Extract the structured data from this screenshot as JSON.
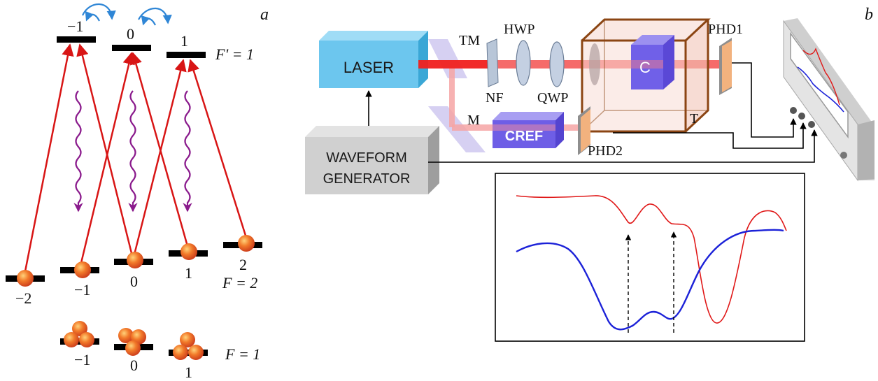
{
  "panel_a": {
    "panel_label": "a",
    "upper_level": {
      "name": "F' = 1",
      "sublevel_labels": [
        "−1",
        "0",
        "1"
      ]
    },
    "middle_level": {
      "name": "F = 2",
      "sublevel_labels": [
        "−2",
        "−1",
        "0",
        "1",
        "2"
      ]
    },
    "lower_level": {
      "name": "F = 1",
      "sublevel_labels": [
        "−1",
        "0",
        "1"
      ]
    },
    "colors": {
      "pump": "#d81515",
      "decay": "#8a1a8c",
      "coherence": "#2f86d6",
      "level": "#000000",
      "atom": "#e8501a"
    }
  },
  "panel_b": {
    "panel_label": "b",
    "components": {
      "laser": "LASER",
      "waveform_generator_line1": "WAVEFORM",
      "waveform_generator_line2": "GENERATOR",
      "cell": "C",
      "reference_cell": "CREF",
      "tm": "TM",
      "hwp": "HWP",
      "nf": "NF",
      "qwp": "QWP",
      "m": "M",
      "t": "T",
      "phd1": "PHD1",
      "phd2": "PHD2"
    },
    "colors": {
      "laser_box": "#6cc6ee",
      "beam": "#f0201e",
      "cell": "#7060e8",
      "thermostat": "#8b4513",
      "photodiode": "#f2b27e",
      "red_trace": "#e01818",
      "blue_trace": "#1c22d8"
    }
  }
}
